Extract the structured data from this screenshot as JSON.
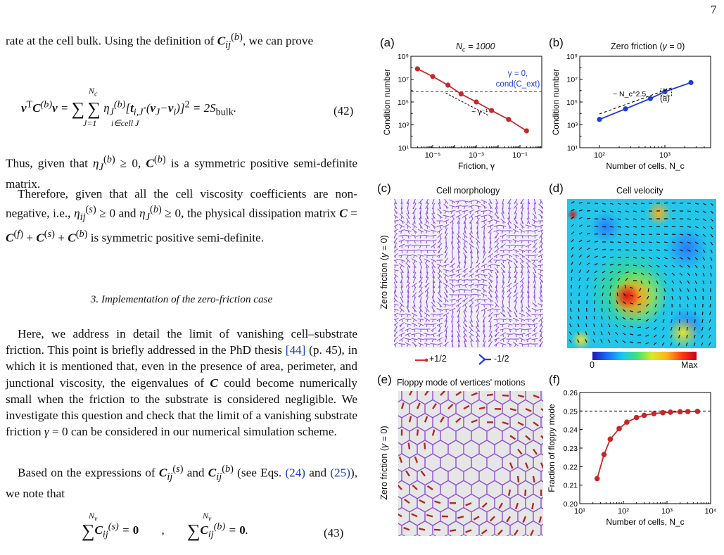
{
  "page_number": "7",
  "left": {
    "para1": "rate at the cell bulk. Using the definition of C_ij^(b), we can prove",
    "eq42": "vᵀC⁽ᵇ⁾v = Σ_{J=1}^{N_c} Σ_{i∈cell J} η_J⁽ᵇ⁾[t_{i,J}·(v_J−v_i)]² = 2S_bulk.",
    "eq42_num": "(42)",
    "para2": "Thus, given that η_J^(b) ≥ 0, C^(b) is a symmetric positive semi-definite matrix.",
    "para3": "Therefore, given that all the cell viscosity coefficients are non-negative, i.e., η_ij^(s) ≥ 0 and η_J^(b) ≥ 0, the physical dissipation matrix C = C^(f) + C^(s) + C^(b) is symmetric positive semi-definite.",
    "section_title": "3.   Implementation of the zero-friction case",
    "para4": "Here, we address in detail the limit of vanishing cell–substrate friction. This point is briefly addressed in the PhD thesis [44] (p. 45), in which it is mentioned that, even in the presence of area, perimeter, and junctional viscosity, the eigenvalues of C could become numerically small when the friction to the substrate is considered negligible. We investigate this question and check that the limit of a vanishing substrate friction γ = 0 can be considered in our numerical simulation scheme.",
    "para5": "Based on the expressions of C_ij^(s) and C_ij^(b) (see Eqs. (24) and (25)), we note that",
    "eq43": "Σ_{i}^{N_v} C_ij^(s) = 0   ,   Σ_{i}^{N_v} C_ij^(b) = 0.",
    "eq43_num": "(43)"
  },
  "figure": {
    "a": {
      "letter": "(a)",
      "title": "N_c = 1000",
      "ylabel": "Condition number",
      "xlabel": "Friction, γ",
      "annot_line1": "γ = 0,",
      "annot_line2": "cond(C_ext)",
      "slope_label": "~ γ⁻¹"
    },
    "b": {
      "letter": "(b)",
      "title": "Zero friction (γ = 0)",
      "ylabel": "Condition number",
      "xlabel": "Number of cells, N_c",
      "slope_label": "~ N_c^2.5",
      "ref_label": "(a)"
    },
    "c": {
      "letter": "(c)",
      "title": "Cell morphology",
      "side_label": "Zero friction (γ = 0)",
      "legend_plus": "+1/2",
      "legend_minus": "-1/2"
    },
    "d": {
      "letter": "(d)",
      "title": "Cell velocity",
      "cbar_min": "0",
      "cbar_max": "Max"
    },
    "e": {
      "letter": "(e)",
      "title": "Floppy mode of vertices' motions",
      "side_label": "Zero friction (γ = 0)"
    },
    "f": {
      "letter": "(f)",
      "ylabel": "Fraction of floppy mode",
      "xlabel": "Number of cells, N_c"
    },
    "colors": {
      "series_red": "#c62828",
      "series_blue": "#1e3cd6",
      "cell_purple": "#8a4fd8",
      "arrow_red": "#b02a2a"
    }
  },
  "chart_data": [
    {
      "type": "line",
      "id": "a",
      "title": "N_c = 1000",
      "xlabel": "Friction, γ",
      "ylabel": "Condition number",
      "xscale": "log",
      "yscale": "log",
      "xlim": [
        1e-06,
        1
      ],
      "ylim": [
        10,
        1000000000
      ],
      "xticks": [
        "10⁻⁵",
        "10⁻³",
        "10⁻¹"
      ],
      "yticks": [
        "10¹",
        "10³",
        "10⁵",
        "10⁷",
        "10⁹"
      ],
      "x": [
        2e-06,
        1e-05,
        5e-05,
        0.0002,
        0.001,
        0.005,
        0.03,
        0.2
      ],
      "y": [
        80000000,
        17000000,
        3000000,
        500000,
        100000,
        18000,
        3000,
        300
      ],
      "hline": {
        "y": 800000,
        "style": "dashed"
      }
    },
    {
      "type": "line",
      "id": "b",
      "title": "Zero friction (γ = 0)",
      "xlabel": "Number of cells, N_c",
      "ylabel": "Condition number",
      "xscale": "log",
      "yscale": "log",
      "xlim": [
        50,
        5000
      ],
      "ylim": [
        10,
        1000000000
      ],
      "xticks": [
        "10²",
        "10³"
      ],
      "yticks": [
        "10¹",
        "10³",
        "10⁵",
        "10⁷",
        "10⁹"
      ],
      "x": [
        100,
        250,
        600,
        1000,
        2500
      ],
      "y": [
        3000,
        25000,
        200000,
        800000,
        5000000
      ]
    },
    {
      "type": "line",
      "id": "f",
      "xlabel": "Number of cells, N_c",
      "ylabel": "Fraction of floppy mode",
      "xscale": "log",
      "xlim": [
        10,
        10000
      ],
      "ylim": [
        0.2,
        0.26
      ],
      "xticks": [
        "10¹",
        "10²",
        "10³",
        "10⁴"
      ],
      "yticks": [
        "0.20",
        "0.21",
        "0.22",
        "0.23",
        "0.24",
        "0.25",
        "0.26"
      ],
      "x": [
        25,
        36,
        50,
        80,
        120,
        200,
        300,
        500,
        800,
        1200,
        2000,
        3000,
        5000
      ],
      "y": [
        0.2135,
        0.2265,
        0.2348,
        0.2405,
        0.244,
        0.2465,
        0.2477,
        0.2486,
        0.2491,
        0.2494,
        0.2496,
        0.2497,
        0.2498
      ],
      "hline": {
        "y": 0.25,
        "style": "dashed"
      }
    }
  ]
}
